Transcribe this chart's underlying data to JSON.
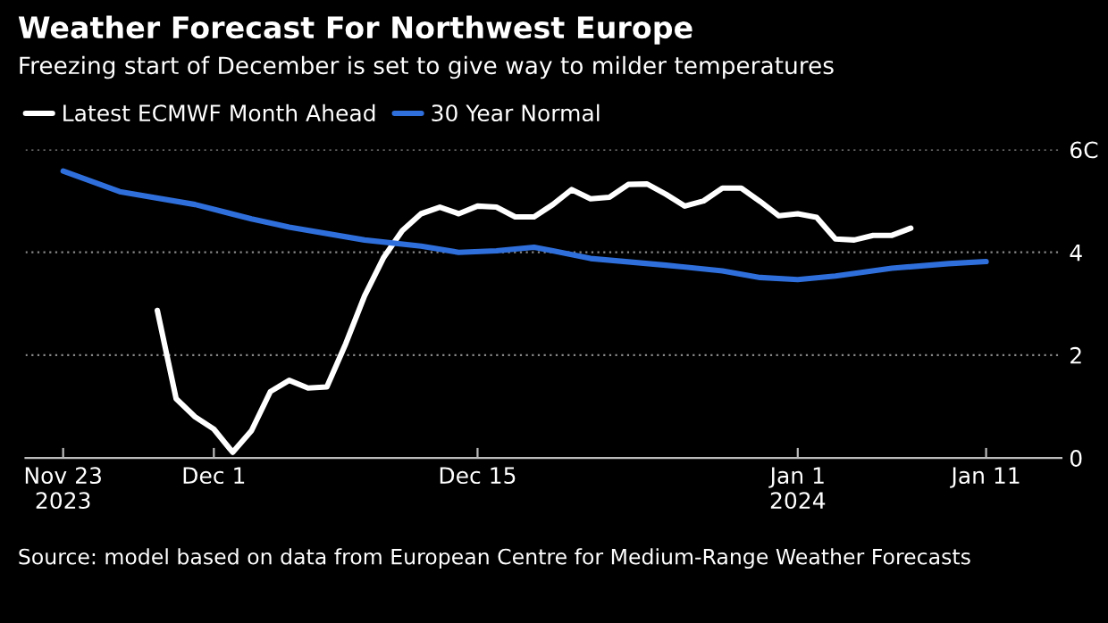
{
  "chart_data": {
    "type": "line",
    "title": "Weather Forecast For Northwest Europe",
    "subtitle": "Freezing start of December is set to give way to milder temperatures",
    "series": [
      {
        "name": "Latest ECMWF Month Ahead",
        "color": "#ffffff",
        "x": [
          "2023-11-28",
          "2023-11-29",
          "2023-11-30",
          "2023-12-01",
          "2023-12-02",
          "2023-12-03",
          "2023-12-04",
          "2023-12-05",
          "2023-12-06",
          "2023-12-07",
          "2023-12-08",
          "2023-12-09",
          "2023-12-10",
          "2023-12-11",
          "2023-12-12",
          "2023-12-13",
          "2023-12-14",
          "2023-12-15",
          "2023-12-16",
          "2023-12-17",
          "2023-12-18",
          "2023-12-19",
          "2023-12-20",
          "2023-12-21",
          "2023-12-22",
          "2023-12-23",
          "2023-12-24",
          "2023-12-25",
          "2023-12-26",
          "2023-12-27",
          "2023-12-28",
          "2023-12-29",
          "2023-12-30",
          "2023-12-31",
          "2024-01-01",
          "2024-01-02",
          "2024-01-03",
          "2024-01-04",
          "2024-01-05",
          "2024-01-06",
          "2024-01-07"
        ],
        "values": [
          2.87,
          1.15,
          0.8,
          0.56,
          0.11,
          0.53,
          1.29,
          1.51,
          1.36,
          1.38,
          2.22,
          3.15,
          3.89,
          4.42,
          4.75,
          4.88,
          4.75,
          4.9,
          4.88,
          4.69,
          4.69,
          4.93,
          5.22,
          5.04,
          5.07,
          5.32,
          5.33,
          5.13,
          4.9,
          5.0,
          5.25,
          5.25,
          4.99,
          4.71,
          4.75,
          4.68,
          4.26,
          4.24,
          4.33,
          4.33,
          4.47
        ]
      },
      {
        "name": "30 Year Normal",
        "color": "#2f6fdc",
        "x": [
          "2023-11-23",
          "2023-11-26",
          "2023-11-30",
          "2023-12-03",
          "2023-12-05",
          "2023-12-09",
          "2023-12-12",
          "2023-12-14",
          "2023-12-16",
          "2023-12-18",
          "2023-12-19",
          "2023-12-21",
          "2023-12-25",
          "2023-12-28",
          "2023-12-30",
          "2024-01-01",
          "2024-01-03",
          "2024-01-06",
          "2024-01-09",
          "2024-01-11"
        ],
        "values": [
          5.58,
          5.18,
          4.93,
          4.65,
          4.49,
          4.24,
          4.12,
          4.0,
          4.03,
          4.1,
          4.03,
          3.88,
          3.75,
          3.64,
          3.51,
          3.47,
          3.54,
          3.69,
          3.78,
          3.82
        ]
      }
    ],
    "xlim": [
      "2023-11-21",
      "2024-01-15"
    ],
    "xticks": [
      {
        "value": "2023-11-23",
        "label": "Nov 23\n2023"
      },
      {
        "value": "2023-12-01",
        "label": "Dec 1"
      },
      {
        "value": "2023-12-15",
        "label": "Dec 15"
      },
      {
        "value": "2024-01-01",
        "label": "Jan 1\n2024"
      },
      {
        "value": "2024-01-11",
        "label": "Jan 11"
      }
    ],
    "ylim": [
      0,
      6
    ],
    "yticks": [
      0,
      2,
      4,
      {
        "value": 6,
        "label": "6C"
      }
    ],
    "grid": "y",
    "legend": "top left",
    "line_style": "solid",
    "annotations": [
      "Source: model based on data from European Centre for Medium-Range Weather Forecasts"
    ]
  }
}
